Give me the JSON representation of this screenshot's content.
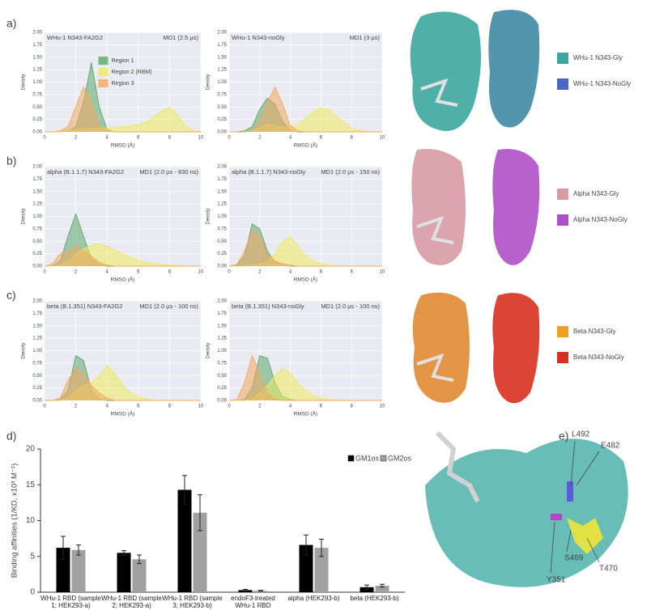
{
  "panels": [
    "a)",
    "b)",
    "c)",
    "d)",
    "e)"
  ],
  "structure_legends": [
    {
      "label": "WHu-1 N343-Gly",
      "color": "#3aa8a0"
    },
    {
      "label": "WHu-1 N343-NoGly",
      "color": "#4a66c8"
    },
    {
      "label": "Alpha N343-Gly",
      "color": "#d89aa4"
    },
    {
      "label": "Alpha N343-NoGly",
      "color": "#b050c8"
    },
    {
      "label": "Beta N343-Gly",
      "color": "#f0a020"
    },
    {
      "label": "Beta N343-NoGly",
      "color": "#d83020"
    }
  ],
  "residues": [
    "L492",
    "E482",
    "S469",
    "T470",
    "Y351"
  ],
  "chart_data": [
    {
      "type": "area",
      "title": "WHu-1 N343-FA2G2",
      "annotation": "MD1 (2.5 µs)",
      "xlabel": "RMSD (Å)",
      "ylabel": "Density",
      "legend": "upper right",
      "x": [
        0,
        0.5,
        1,
        1.5,
        2,
        2.5,
        3,
        3.5,
        4,
        4.5,
        5,
        5.5,
        6,
        6.5,
        7,
        7.5,
        8,
        8.5,
        9,
        9.5,
        10
      ],
      "xlim": [
        0,
        10
      ],
      "xticks": [
        0,
        2,
        4,
        6,
        8,
        10
      ],
      "ylim": [
        0,
        2
      ],
      "yticks": [
        {
          "value": 0,
          "label": "0.00"
        },
        {
          "value": 0.25,
          "label": "0.25"
        },
        {
          "value": 0.5,
          "label": "0.50"
        },
        {
          "value": 0.75,
          "label": "0.75"
        },
        {
          "value": 1,
          "label": "1.00"
        },
        {
          "value": 1.25,
          "label": "1.25"
        },
        {
          "value": 1.5,
          "label": "1.50"
        },
        {
          "value": 1.75,
          "label": "1.75"
        },
        {
          "value": 2,
          "label": "2.00"
        }
      ],
      "series": [
        {
          "name": "Region 1",
          "color": "#5aa86a",
          "values": [
            0,
            0,
            0,
            0.02,
            0.1,
            0.6,
            1.4,
            0.5,
            0.05,
            0,
            0,
            0,
            0,
            0,
            0,
            0,
            0,
            0,
            0,
            0,
            0
          ]
        },
        {
          "name": "Region 2 (RBM)",
          "color": "#eeea60",
          "values": [
            0,
            0,
            0,
            0.03,
            0.05,
            0.06,
            0.07,
            0.07,
            0.08,
            0.09,
            0.1,
            0.12,
            0.15,
            0.2,
            0.3,
            0.42,
            0.5,
            0.35,
            0.12,
            0.03,
            0
          ]
        },
        {
          "name": "Region 3",
          "color": "#f2a860",
          "values": [
            0,
            0,
            0.02,
            0.1,
            0.5,
            0.9,
            0.6,
            0.15,
            0.02,
            0,
            0,
            0,
            0,
            0,
            0,
            0,
            0,
            0,
            0,
            0,
            0
          ]
        }
      ]
    },
    {
      "type": "area",
      "title": "WHu-1 N343-noGly",
      "annotation": "MD1 (3 µs)",
      "xlabel": "RMSD (Å)",
      "ylabel": "Density",
      "x": [
        0,
        0.5,
        1,
        1.5,
        2,
        2.5,
        3,
        3.5,
        4,
        4.5,
        5,
        5.5,
        6,
        6.5,
        7,
        7.5,
        8,
        8.5,
        9,
        9.5,
        10
      ],
      "xlim": [
        0,
        10
      ],
      "xticks": [
        0,
        2,
        4,
        6,
        8,
        10
      ],
      "ylim": [
        0,
        2
      ],
      "yticks": [
        {
          "value": 0,
          "label": "0.00"
        },
        {
          "value": 0.25,
          "label": "0.25"
        },
        {
          "value": 0.5,
          "label": "0.50"
        },
        {
          "value": 0.75,
          "label": "0.75"
        },
        {
          "value": 1,
          "label": "1.00"
        },
        {
          "value": 1.25,
          "label": "1.25"
        },
        {
          "value": 1.5,
          "label": "1.50"
        },
        {
          "value": 1.75,
          "label": "1.75"
        },
        {
          "value": 2,
          "label": "2.00"
        }
      ],
      "series": [
        {
          "color": "#5aa86a",
          "values": [
            0,
            0,
            0.02,
            0.1,
            0.45,
            0.68,
            0.55,
            0.2,
            0.03,
            0,
            0,
            0,
            0,
            0,
            0,
            0,
            0,
            0,
            0,
            0,
            0
          ]
        },
        {
          "color": "#eeea60",
          "values": [
            0,
            0,
            0,
            0.02,
            0.08,
            0.15,
            0.12,
            0.1,
            0.1,
            0.15,
            0.28,
            0.4,
            0.48,
            0.45,
            0.32,
            0.18,
            0.08,
            0.03,
            0.01,
            0,
            0
          ]
        },
        {
          "color": "#f2a860",
          "values": [
            0,
            0,
            0,
            0.03,
            0.2,
            0.6,
            0.9,
            0.55,
            0.12,
            0.02,
            0,
            0,
            0,
            0,
            0,
            0,
            0,
            0,
            0,
            0,
            0
          ]
        }
      ]
    },
    {
      "type": "area",
      "title": "alpha (B.1.1.7) N343-FA2G2",
      "annotation": "MD1 (2.0 µs - 830 ns)",
      "xlabel": "RMSD (Å)",
      "ylabel": "Density",
      "x": [
        0,
        0.5,
        1,
        1.5,
        2,
        2.5,
        3,
        3.5,
        4,
        4.5,
        5,
        5.5,
        6,
        6.5,
        7,
        7.5,
        8,
        8.5,
        9,
        9.5,
        10
      ],
      "xlim": [
        0,
        10
      ],
      "xticks": [
        0,
        2,
        4,
        6,
        8,
        10
      ],
      "ylim": [
        0,
        2
      ],
      "yticks": [
        {
          "value": 0,
          "label": "0.00"
        },
        {
          "value": 0.25,
          "label": "0.25"
        },
        {
          "value": 0.5,
          "label": "0.50"
        },
        {
          "value": 0.75,
          "label": "0.75"
        },
        {
          "value": 1,
          "label": "1.00"
        },
        {
          "value": 1.25,
          "label": "1.25"
        },
        {
          "value": 1.5,
          "label": "1.50"
        },
        {
          "value": 1.75,
          "label": "1.75"
        },
        {
          "value": 2,
          "label": "2.00"
        }
      ],
      "series": [
        {
          "color": "#5aa86a",
          "values": [
            0,
            0,
            0.1,
            0.6,
            1.05,
            0.6,
            0.15,
            0.03,
            0,
            0,
            0,
            0,
            0,
            0,
            0,
            0,
            0,
            0,
            0,
            0,
            0
          ]
        },
        {
          "color": "#eeea60",
          "values": [
            0,
            0,
            0.02,
            0.1,
            0.25,
            0.35,
            0.42,
            0.45,
            0.4,
            0.32,
            0.25,
            0.18,
            0.12,
            0.08,
            0.05,
            0.03,
            0.02,
            0.01,
            0,
            0,
            0
          ]
        },
        {
          "color": "#f2a860",
          "values": [
            0,
            0.05,
            0.25,
            0.3,
            0.4,
            0.3,
            0.2,
            0.08,
            0.02,
            0,
            0,
            0,
            0,
            0,
            0,
            0,
            0,
            0,
            0,
            0,
            0
          ]
        }
      ]
    },
    {
      "type": "area",
      "title": "alpha (B.1.1.7) N343-noGly",
      "annotation": "MD1 (2.0 µs - 150 ns)",
      "xlabel": "RMSD (Å)",
      "ylabel": "Density",
      "x": [
        0,
        0.5,
        1,
        1.5,
        2,
        2.5,
        3,
        3.5,
        4,
        4.5,
        5,
        5.5,
        6,
        6.5,
        7,
        7.5,
        8,
        8.5,
        9,
        9.5,
        10
      ],
      "xlim": [
        0,
        10
      ],
      "xticks": [
        0,
        2,
        4,
        6,
        8,
        10
      ],
      "ylim": [
        0,
        2
      ],
      "yticks": [
        {
          "value": 0,
          "label": "0.00"
        },
        {
          "value": 0.25,
          "label": "0.25"
        },
        {
          "value": 0.5,
          "label": "0.50"
        },
        {
          "value": 0.75,
          "label": "0.75"
        },
        {
          "value": 1,
          "label": "1.00"
        },
        {
          "value": 1.25,
          "label": "1.25"
        },
        {
          "value": 1.5,
          "label": "1.50"
        },
        {
          "value": 1.75,
          "label": "1.75"
        },
        {
          "value": 2,
          "label": "2.00"
        }
      ],
      "series": [
        {
          "color": "#5aa86a",
          "values": [
            0,
            0.02,
            0.2,
            0.85,
            0.75,
            0.3,
            0.08,
            0.02,
            0,
            0,
            0,
            0,
            0,
            0,
            0,
            0,
            0,
            0,
            0,
            0,
            0
          ]
        },
        {
          "color": "#eeea60",
          "values": [
            0,
            0,
            0,
            0.02,
            0.05,
            0.1,
            0.25,
            0.5,
            0.6,
            0.4,
            0.2,
            0.1,
            0.05,
            0.02,
            0,
            0,
            0,
            0,
            0,
            0,
            0
          ]
        },
        {
          "color": "#f2a860",
          "values": [
            0,
            0.03,
            0.3,
            0.72,
            0.6,
            0.25,
            0.1,
            0.05,
            0.02,
            0,
            0,
            0,
            0,
            0,
            0,
            0,
            0,
            0,
            0,
            0,
            0
          ]
        }
      ]
    },
    {
      "type": "area",
      "title": "beta (B.1.351) N343-FA2G2",
      "annotation": "MD1 (2.0 µs - 100 ns)",
      "xlabel": "RMSD (Å)",
      "ylabel": "Density",
      "x": [
        0,
        0.5,
        1,
        1.5,
        2,
        2.5,
        3,
        3.5,
        4,
        4.5,
        5,
        5.5,
        6,
        6.5,
        7,
        7.5,
        8,
        8.5,
        9,
        9.5,
        10
      ],
      "xlim": [
        0,
        10
      ],
      "xticks": [
        0,
        2,
        4,
        6,
        8,
        10
      ],
      "ylim": [
        0,
        2
      ],
      "yticks": [
        {
          "value": 0,
          "label": "0.00"
        },
        {
          "value": 0.25,
          "label": "0.25"
        },
        {
          "value": 0.5,
          "label": "0.50"
        },
        {
          "value": 0.75,
          "label": "0.75"
        },
        {
          "value": 1,
          "label": "1.00"
        },
        {
          "value": 1.25,
          "label": "1.25"
        },
        {
          "value": 1.5,
          "label": "1.50"
        },
        {
          "value": 1.75,
          "label": "1.75"
        },
        {
          "value": 2,
          "label": "2.00"
        }
      ],
      "series": [
        {
          "color": "#5aa86a",
          "values": [
            0,
            0,
            0.02,
            0.2,
            0.9,
            0.8,
            0.2,
            0.03,
            0,
            0,
            0,
            0,
            0,
            0,
            0,
            0,
            0,
            0,
            0,
            0,
            0
          ]
        },
        {
          "color": "#eeea60",
          "values": [
            0,
            0,
            0,
            0.05,
            0.2,
            0.3,
            0.35,
            0.5,
            0.7,
            0.55,
            0.3,
            0.15,
            0.07,
            0.03,
            0,
            0,
            0,
            0,
            0,
            0,
            0
          ]
        },
        {
          "color": "#f2a860",
          "values": [
            0,
            0,
            0.05,
            0.4,
            0.65,
            0.55,
            0.3,
            0.15,
            0.05,
            0,
            0,
            0,
            0,
            0,
            0,
            0,
            0,
            0,
            0,
            0,
            0
          ]
        }
      ]
    },
    {
      "type": "area",
      "title": "beta (B.1.351) N343-noGly",
      "annotation": "MD1 (2.0 µs - 100 ns)",
      "xlabel": "RMSD (Å)",
      "ylabel": "Density",
      "x": [
        0,
        0.5,
        1,
        1.5,
        2,
        2.5,
        3,
        3.5,
        4,
        4.5,
        5,
        5.5,
        6,
        6.5,
        7,
        7.5,
        8,
        8.5,
        9,
        9.5,
        10
      ],
      "xlim": [
        0,
        10
      ],
      "xticks": [
        0,
        2,
        4,
        6,
        8,
        10
      ],
      "ylim": [
        0,
        2
      ],
      "yticks": [
        {
          "value": 0,
          "label": "0.00"
        },
        {
          "value": 0.25,
          "label": "0.25"
        },
        {
          "value": 0.5,
          "label": "0.50"
        },
        {
          "value": 0.75,
          "label": "0.75"
        },
        {
          "value": 1,
          "label": "1.00"
        },
        {
          "value": 1.25,
          "label": "1.25"
        },
        {
          "value": 1.5,
          "label": "1.50"
        },
        {
          "value": 1.75,
          "label": "1.75"
        },
        {
          "value": 2,
          "label": "2.00"
        }
      ],
      "series": [
        {
          "color": "#5aa86a",
          "values": [
            0,
            0,
            0.02,
            0.25,
            0.9,
            0.85,
            0.35,
            0.08,
            0.02,
            0,
            0,
            0,
            0,
            0,
            0,
            0,
            0,
            0,
            0,
            0,
            0
          ]
        },
        {
          "color": "#eeea60",
          "values": [
            0,
            0,
            0,
            0.03,
            0.15,
            0.3,
            0.5,
            0.65,
            0.55,
            0.35,
            0.2,
            0.1,
            0.05,
            0.02,
            0.01,
            0,
            0,
            0,
            0,
            0,
            0
          ]
        },
        {
          "color": "#f2a860",
          "values": [
            0,
            0.02,
            0.35,
            0.9,
            0.55,
            0.15,
            0.03,
            0,
            0,
            0,
            0,
            0,
            0,
            0,
            0,
            0,
            0,
            0,
            0,
            0,
            0
          ]
        }
      ]
    },
    {
      "type": "bar",
      "ylabel": "Binding affinities (1/KD, x10³ M⁻¹)",
      "legend": "upper right",
      "categories": [
        "WHu-1 RBD (sample 1; HEK293-a)",
        "WHu-1 RBD (sample 2; HEK293-a)",
        "WHu-1 RBD (sample 3; HEK293-b)",
        "endoF3-treated WHu-1 RBD (HEK293-b)",
        "alpha (HEK293-b)",
        "beta (HEK293-b)"
      ],
      "ylim": [
        0,
        20
      ],
      "yticks": [
        0,
        5,
        10,
        15,
        20
      ],
      "series": [
        {
          "name": "GM1os",
          "color": "#000000",
          "values": [
            6.2,
            5.5,
            14.3,
            0.3,
            6.6,
            0.7
          ],
          "errors": [
            1.6,
            0.3,
            2.0,
            0.1,
            1.4,
            0.3
          ]
        },
        {
          "name": "GM2os",
          "color": "#a0a0a0",
          "values": [
            5.9,
            4.6,
            11.1,
            0.2,
            6.2,
            0.9
          ],
          "errors": [
            0.7,
            0.6,
            2.5,
            0.05,
            1.2,
            0.2
          ]
        }
      ]
    }
  ]
}
